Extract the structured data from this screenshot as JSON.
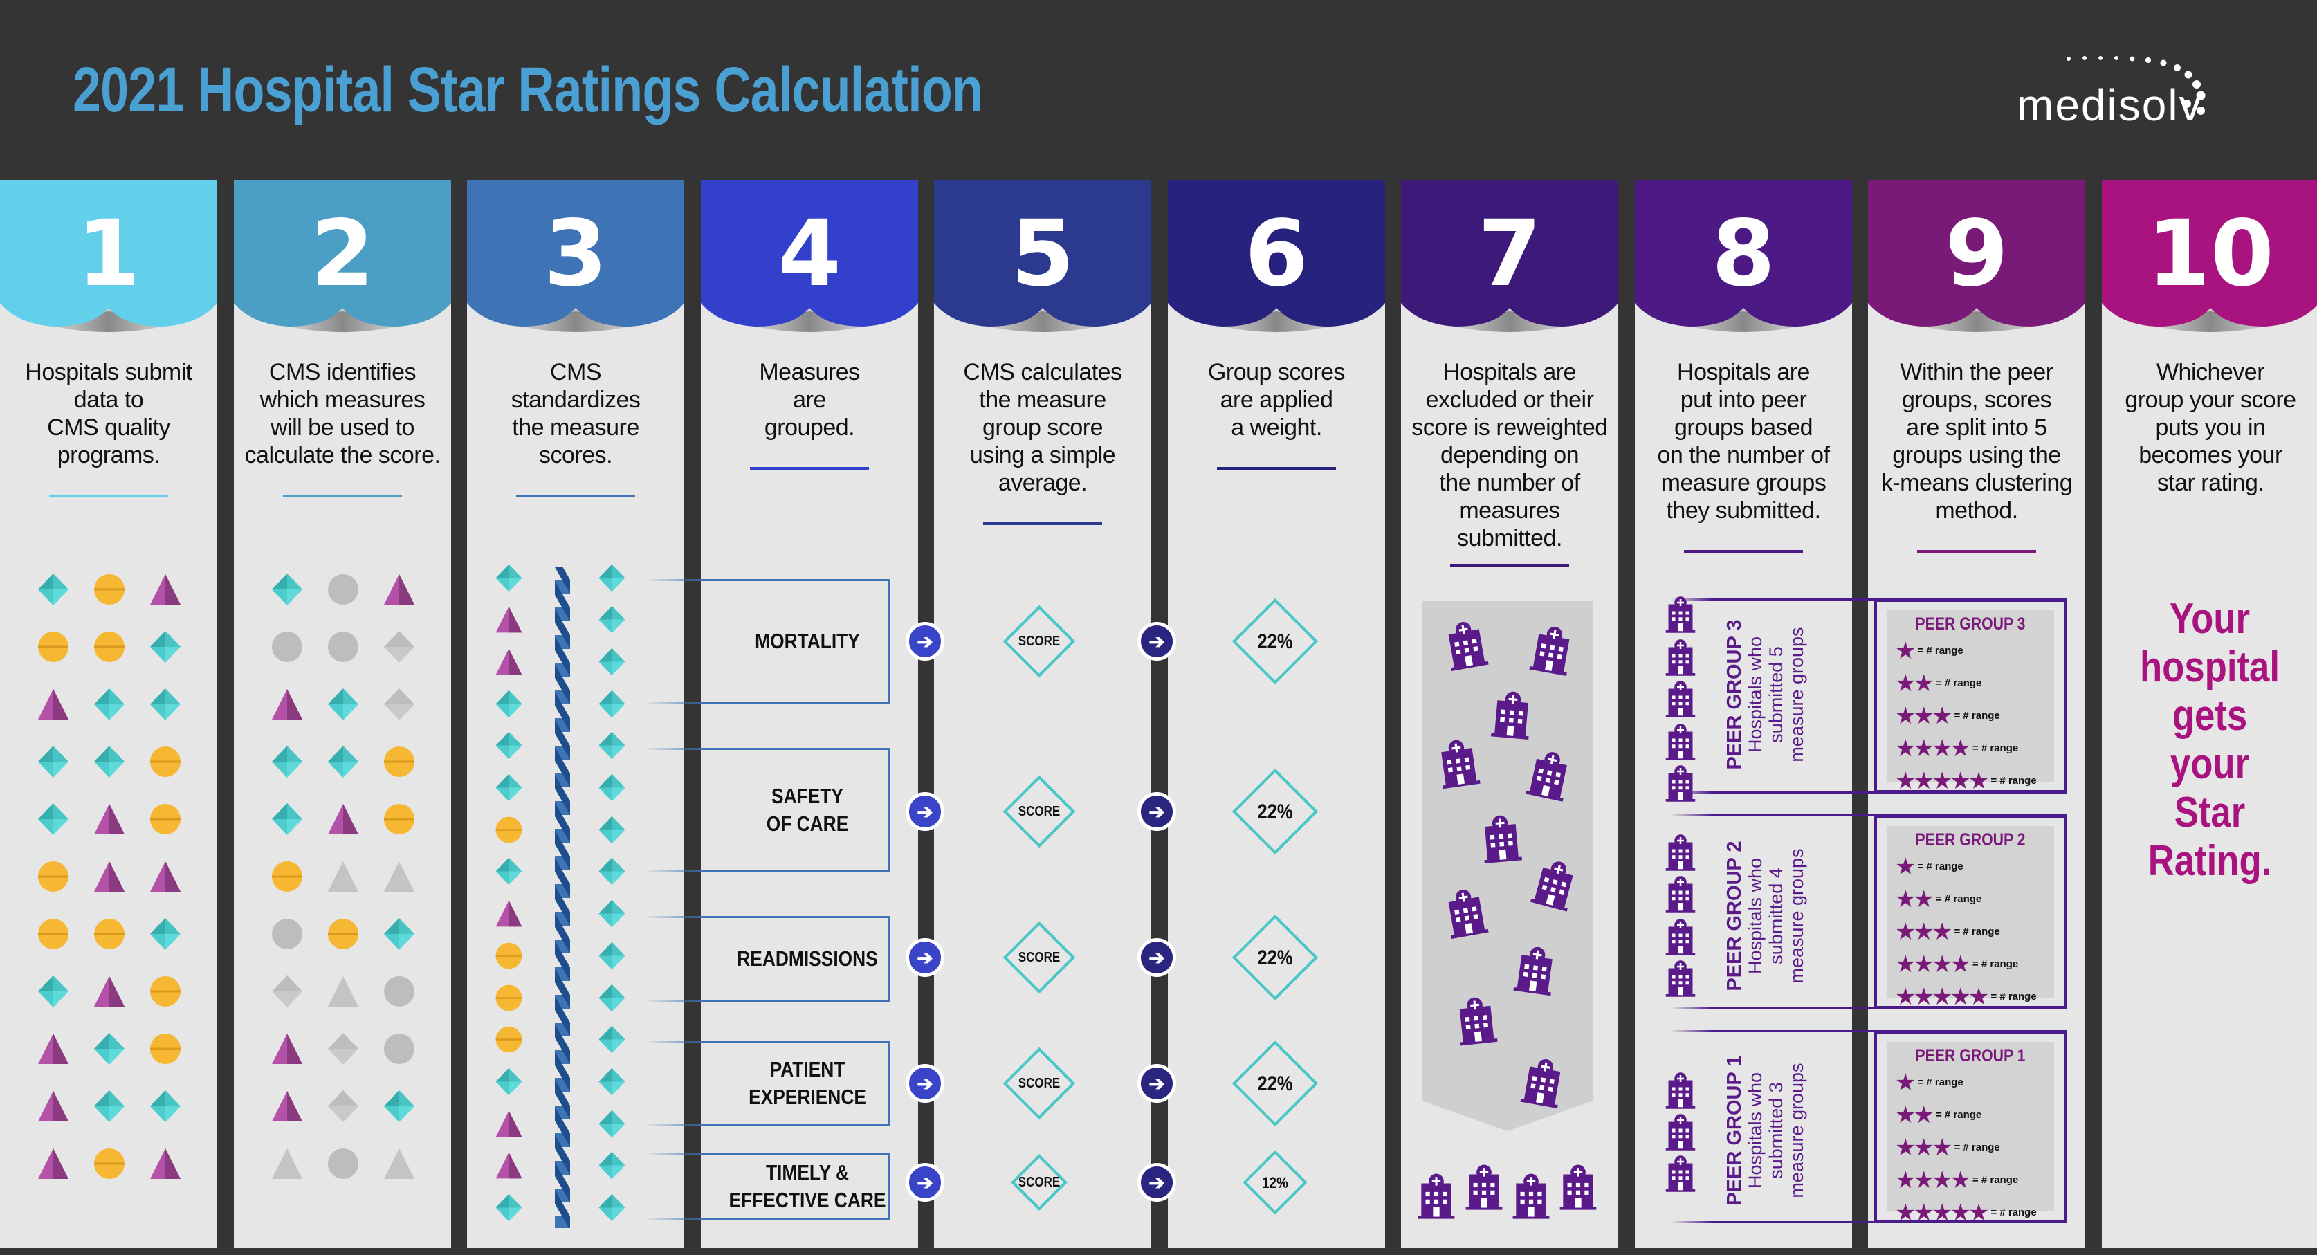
{
  "header": {
    "title": "2021 Hospital Star Ratings Calculation",
    "logo_text": "medisolv"
  },
  "colors": {
    "background": "#333433",
    "panel": "#e6e6e6",
    "title": "#4aa0d2",
    "teal": "#49c6c6",
    "orange": "#f6b733",
    "purple": "#9b3f93",
    "gray": "#bdbdbd",
    "final_text": "#a8137f"
  },
  "columns": [
    {
      "number": "1",
      "color": "#62d0ea",
      "description": "Hospitals submit\ndata to\nCMS quality\nprograms."
    },
    {
      "number": "2",
      "color": "#4b9ec4",
      "description": "CMS identifies\nwhich measures\nwill be used to\ncalculate the score."
    },
    {
      "number": "3",
      "color": "#3e73b5",
      "description": "CMS\nstandardizes\nthe measure\nscores."
    },
    {
      "number": "4",
      "color": "#3340cc",
      "description": "Measures\nare\ngrouped."
    },
    {
      "number": "5",
      "color": "#2b3a8f",
      "description": "CMS calculates\nthe measure\ngroup score\nusing a simple\naverage."
    },
    {
      "number": "6",
      "color": "#28227f",
      "description": "Group scores\nare applied\na weight."
    },
    {
      "number": "7",
      "color": "#3d1a7a",
      "description": "Hospitals are\nexcluded or their\nscore is reweighted\ndepending on\nthe number of\nmeasures\nsubmitted."
    },
    {
      "number": "8",
      "color": "#4d1a85",
      "description": "Hospitals are\nput into peer\ngroups based\non the number of\nmeasure groups\nthey submitted."
    },
    {
      "number": "9",
      "color": "#7a1a78",
      "description": "Within the peer\ngroups, scores\nare split into 5\ngroups using the\nk-means clustering\nmethod."
    },
    {
      "number": "10",
      "color": "#a8137f",
      "description": "Whichever\ngroup your score\nputs you in\nbecomes your\nstar rating."
    }
  ],
  "step1_shapes": [
    "diamond",
    "circle",
    "triangle",
    "circle",
    "circle",
    "diamond",
    "triangle",
    "diamond",
    "diamond",
    "diamond",
    "diamond",
    "circle",
    "diamond",
    "triangle",
    "circle",
    "circle",
    "triangle",
    "triangle",
    "circle",
    "circle",
    "diamond",
    "diamond",
    "triangle",
    "circle",
    "triangle",
    "diamond",
    "circle",
    "triangle",
    "diamond",
    "diamond",
    "triangle",
    "circle",
    "triangle"
  ],
  "step2_shapes": [
    "diamond",
    "circle-gray",
    "triangle",
    "circle-gray",
    "circle-gray",
    "diamond-gray",
    "triangle",
    "diamond",
    "diamond-gray",
    "diamond",
    "diamond",
    "circle",
    "diamond",
    "triangle",
    "circle",
    "circle",
    "triangle-gray",
    "triangle-gray",
    "circle-gray",
    "circle",
    "diamond",
    "diamond-gray",
    "triangle-gray",
    "circle-gray",
    "triangle",
    "diamond-gray",
    "circle-gray",
    "triangle",
    "diamond-gray",
    "diamond",
    "triangle-gray",
    "circle-gray",
    "triangle-gray"
  ],
  "step3_shapes": [
    "diamond",
    "triangle",
    "triangle",
    "diamond",
    "diamond",
    "diamond",
    "circle",
    "diamond",
    "triangle",
    "circle",
    "circle",
    "circle",
    "diamond",
    "triangle",
    "triangle",
    "diamond"
  ],
  "measure_groups": [
    {
      "label": "MORTALITY",
      "score": "SCORE",
      "weight": "22%"
    },
    {
      "label": "SAFETY\nOF CARE",
      "score": "SCORE",
      "weight": "22%"
    },
    {
      "label": "READMISSIONS",
      "score": "SCORE",
      "weight": "22%"
    },
    {
      "label": "PATIENT\nEXPERIENCE",
      "score": "SCORE",
      "weight": "22%"
    },
    {
      "label": "TIMELY &\nEFFECTIVE CARE",
      "score": "SCORE",
      "weight": "12%"
    }
  ],
  "peer_groups": [
    {
      "title": "PEER GROUP 3",
      "line1": "Hospitals who",
      "line2": "submitted 5",
      "line3": "measure groups",
      "hospitals": 5,
      "ratings": [
        {
          "stars": "★",
          "range": "= # range"
        },
        {
          "stars": "★★",
          "range": "= # range"
        },
        {
          "stars": "★★★",
          "range": "= # range"
        },
        {
          "stars": "★★★★",
          "range": "= # range"
        },
        {
          "stars": "★★★★★",
          "range": "= # range"
        }
      ]
    },
    {
      "title": "PEER GROUP 2",
      "line1": "Hospitals who",
      "line2": "submitted 4",
      "line3": "measure groups",
      "hospitals": 4,
      "ratings": [
        {
          "stars": "★",
          "range": "= # range"
        },
        {
          "stars": "★★",
          "range": "= # range"
        },
        {
          "stars": "★★★",
          "range": "= # range"
        },
        {
          "stars": "★★★★",
          "range": "= # range"
        },
        {
          "stars": "★★★★★",
          "range": "= # range"
        }
      ]
    },
    {
      "title": "PEER GROUP 1",
      "line1": "Hospitals who",
      "line2": "submitted 3",
      "line3": "measure groups",
      "hospitals": 3,
      "ratings": [
        {
          "stars": "★",
          "range": "= # range"
        },
        {
          "stars": "★★",
          "range": "= # range"
        },
        {
          "stars": "★★★",
          "range": "= # range"
        },
        {
          "stars": "★★★★",
          "range": "= # range"
        },
        {
          "stars": "★★★★★",
          "range": "= # range"
        }
      ]
    }
  ],
  "final_text": "Your\nhospital\ngets\nyour\nStar\nRating."
}
